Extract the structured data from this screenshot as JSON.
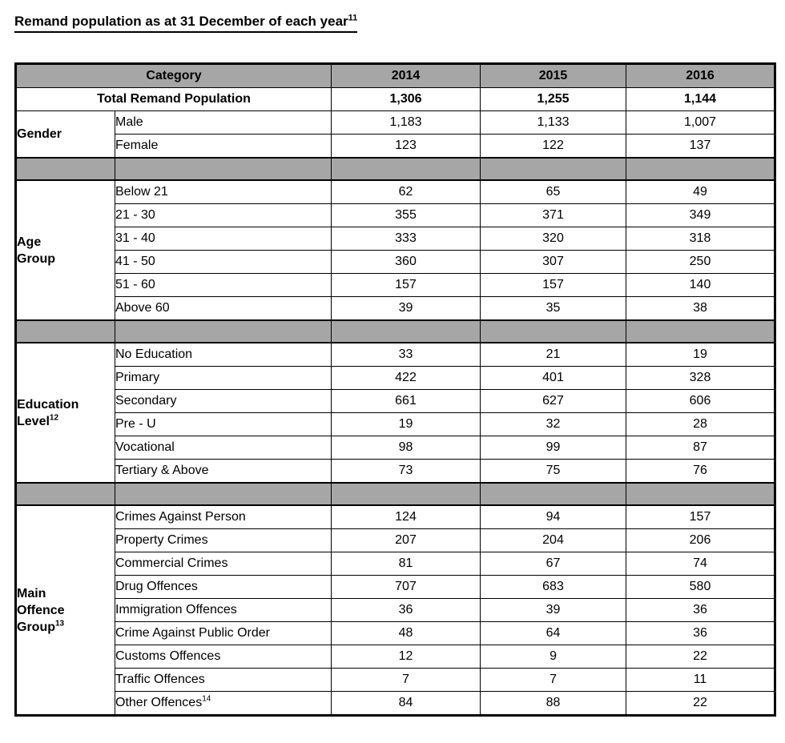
{
  "title": {
    "text": "Remand population as at 31 December of each year",
    "superscript": "11"
  },
  "colors": {
    "header_bg": "#a6a6a6",
    "separator_bg": "#a6a6a6",
    "border": "#000000",
    "text": "#000000",
    "page_bg": "#ffffff"
  },
  "table": {
    "header": {
      "category": "Category",
      "years": [
        "2014",
        "2015",
        "2016"
      ]
    },
    "total": {
      "label": "Total Remand Population",
      "values": [
        "1,306",
        "1,255",
        "1,144"
      ]
    },
    "sections": [
      {
        "group_lines": [
          "Gender"
        ],
        "group_sup": null,
        "rows": [
          {
            "label": "Male",
            "values": [
              "1,183",
              "1,133",
              "1,007"
            ]
          },
          {
            "label": "Female",
            "values": [
              "123",
              "122",
              "137"
            ]
          }
        ]
      },
      {
        "group_lines": [
          "Age",
          "Group"
        ],
        "group_sup": null,
        "rows": [
          {
            "label": "Below 21",
            "values": [
              "62",
              "65",
              "49"
            ]
          },
          {
            "label": "21 - 30",
            "values": [
              "355",
              "371",
              "349"
            ]
          },
          {
            "label": "31 - 40",
            "values": [
              "333",
              "320",
              "318"
            ]
          },
          {
            "label": "41 - 50",
            "values": [
              "360",
              "307",
              "250"
            ]
          },
          {
            "label": "51 - 60",
            "values": [
              "157",
              "157",
              "140"
            ]
          },
          {
            "label": "Above 60",
            "values": [
              "39",
              "35",
              "38"
            ]
          }
        ]
      },
      {
        "group_lines": [
          "Education",
          "Level"
        ],
        "group_sup": "12",
        "rows": [
          {
            "label": "No Education",
            "values": [
              "33",
              "21",
              "19"
            ]
          },
          {
            "label": "Primary",
            "values": [
              "422",
              "401",
              "328"
            ]
          },
          {
            "label": "Secondary",
            "values": [
              "661",
              "627",
              "606"
            ]
          },
          {
            "label": "Pre - U",
            "values": [
              "19",
              "32",
              "28"
            ]
          },
          {
            "label": "Vocational",
            "values": [
              "98",
              "99",
              "87"
            ]
          },
          {
            "label": "Tertiary & Above",
            "values": [
              "73",
              "75",
              "76"
            ]
          }
        ]
      },
      {
        "group_lines": [
          "Main",
          "Offence",
          "Group"
        ],
        "group_sup": "13",
        "rows": [
          {
            "label": "Crimes Against Person",
            "values": [
              "124",
              "94",
              "157"
            ]
          },
          {
            "label": "Property Crimes",
            "values": [
              "207",
              "204",
              "206"
            ]
          },
          {
            "label": "Commercial Crimes",
            "values": [
              "81",
              "67",
              "74"
            ]
          },
          {
            "label": "Drug Offences",
            "values": [
              "707",
              "683",
              "580"
            ]
          },
          {
            "label": "Immigration Offences",
            "values": [
              "36",
              "39",
              "36"
            ]
          },
          {
            "label": "Crime Against Public Order",
            "values": [
              "48",
              "64",
              "36"
            ]
          },
          {
            "label": "Customs Offences",
            "values": [
              "12",
              "9",
              "22"
            ]
          },
          {
            "label": "Traffic Offences",
            "values": [
              "7",
              "7",
              "11"
            ]
          },
          {
            "label": "Other Offences",
            "label_sup": "14",
            "values": [
              "84",
              "88",
              "22"
            ]
          }
        ]
      }
    ]
  }
}
